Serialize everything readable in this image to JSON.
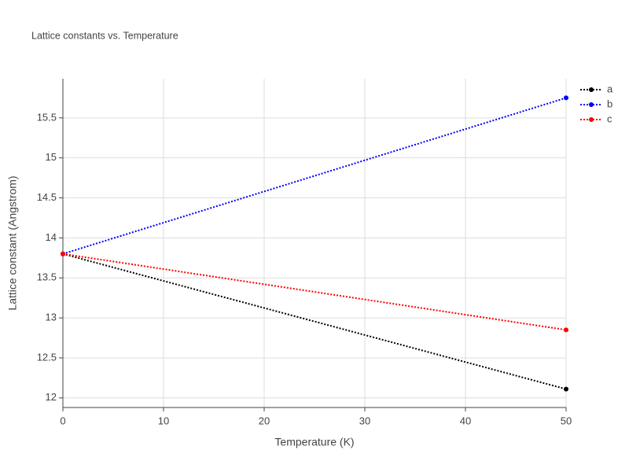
{
  "chart_data": {
    "type": "line",
    "title": "Lattice constants vs. Temperature",
    "x_label": "Temperature (K)",
    "y_label": "Lattice constant (Angstrom)",
    "x": [
      0,
      50
    ],
    "series": [
      {
        "name": "a",
        "color": "#000000",
        "values": [
          13.8,
          12.11
        ]
      },
      {
        "name": "b",
        "color": "#0000ff",
        "values": [
          13.8,
          15.75
        ]
      },
      {
        "name": "c",
        "color": "#ff0000",
        "values": [
          13.8,
          12.85
        ]
      }
    ],
    "xlim": [
      0,
      50
    ],
    "xticks": [
      0,
      10,
      20,
      30,
      40,
      50
    ],
    "ylim": [
      11.88,
      15.99
    ],
    "yticks": [
      12,
      12.5,
      13,
      13.5,
      14,
      14.5,
      15,
      15.5
    ],
    "grid": true,
    "legend": "top-right"
  }
}
